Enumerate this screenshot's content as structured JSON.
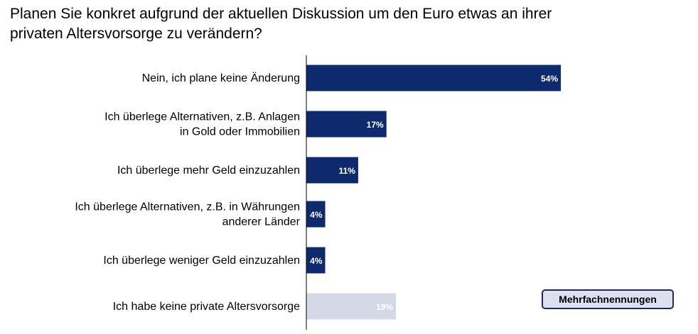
{
  "title_lines": [
    "Planen Sie konkret aufgrund der aktuellen Diskussion um den Euro etwas an ihrer",
    "privaten Altersvorsorge zu verändern?"
  ],
  "note": "Mehrfachnennungen",
  "chart_data": {
    "type": "bar",
    "orientation": "horizontal",
    "categories": [
      [
        "Nein, ich plane keine Änderung"
      ],
      [
        "Ich überlege Alternativen, z.B. Anlagen",
        "in Gold oder Immobilien"
      ],
      [
        "Ich überlege mehr Geld einzuzahlen"
      ],
      [
        "Ich überlege Alternativen, z.B. in Währungen",
        "anderer Länder"
      ],
      [
        "Ich überlege weniger Geld einzuzahlen"
      ],
      [
        "Ich habe keine private Altersvorsorge"
      ]
    ],
    "values": [
      54,
      17,
      11,
      4,
      4,
      19
    ],
    "value_labels": [
      "54%",
      "17%",
      "11%",
      "4%",
      "4%",
      "19%"
    ],
    "colors": [
      "#0e2a6e",
      "#0e2a6e",
      "#0e2a6e",
      "#0e2a6e",
      "#0e2a6e",
      "#d3d7e6"
    ],
    "xlim": [
      0,
      100
    ]
  }
}
